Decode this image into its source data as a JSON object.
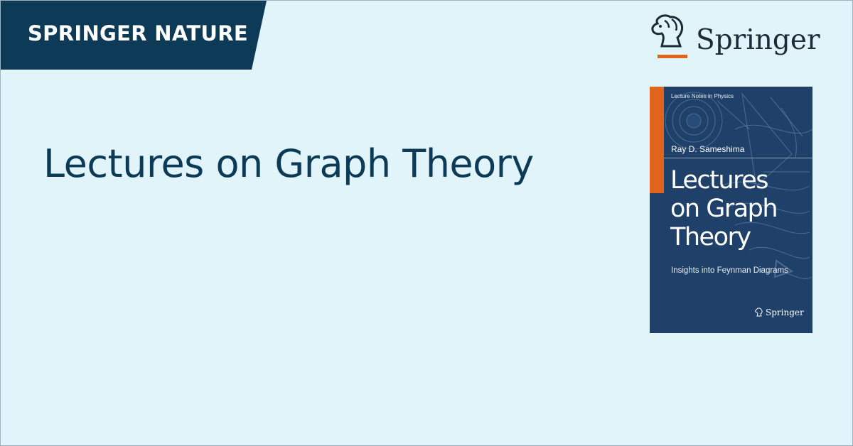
{
  "header": {
    "brand": "SPRINGER NATURE"
  },
  "main": {
    "title": "Lectures on Graph Theory"
  },
  "logo": {
    "wordmark": "Springer",
    "icon": "springer-horse-icon"
  },
  "book_cover": {
    "series": "Lecture Notes in Physics",
    "author": "Ray D. Sameshima",
    "title_lines": [
      "Lectures",
      "on Graph",
      "Theory"
    ],
    "subtitle": "Insights into Feynman Diagrams",
    "publisher": "Springer"
  },
  "colors": {
    "background": "#e0f4fa",
    "banner": "#0c3a57",
    "title": "#0c3a57",
    "cover": "#1f4169",
    "accent_orange": "#e0631e",
    "logo_text": "#1e2a36"
  }
}
